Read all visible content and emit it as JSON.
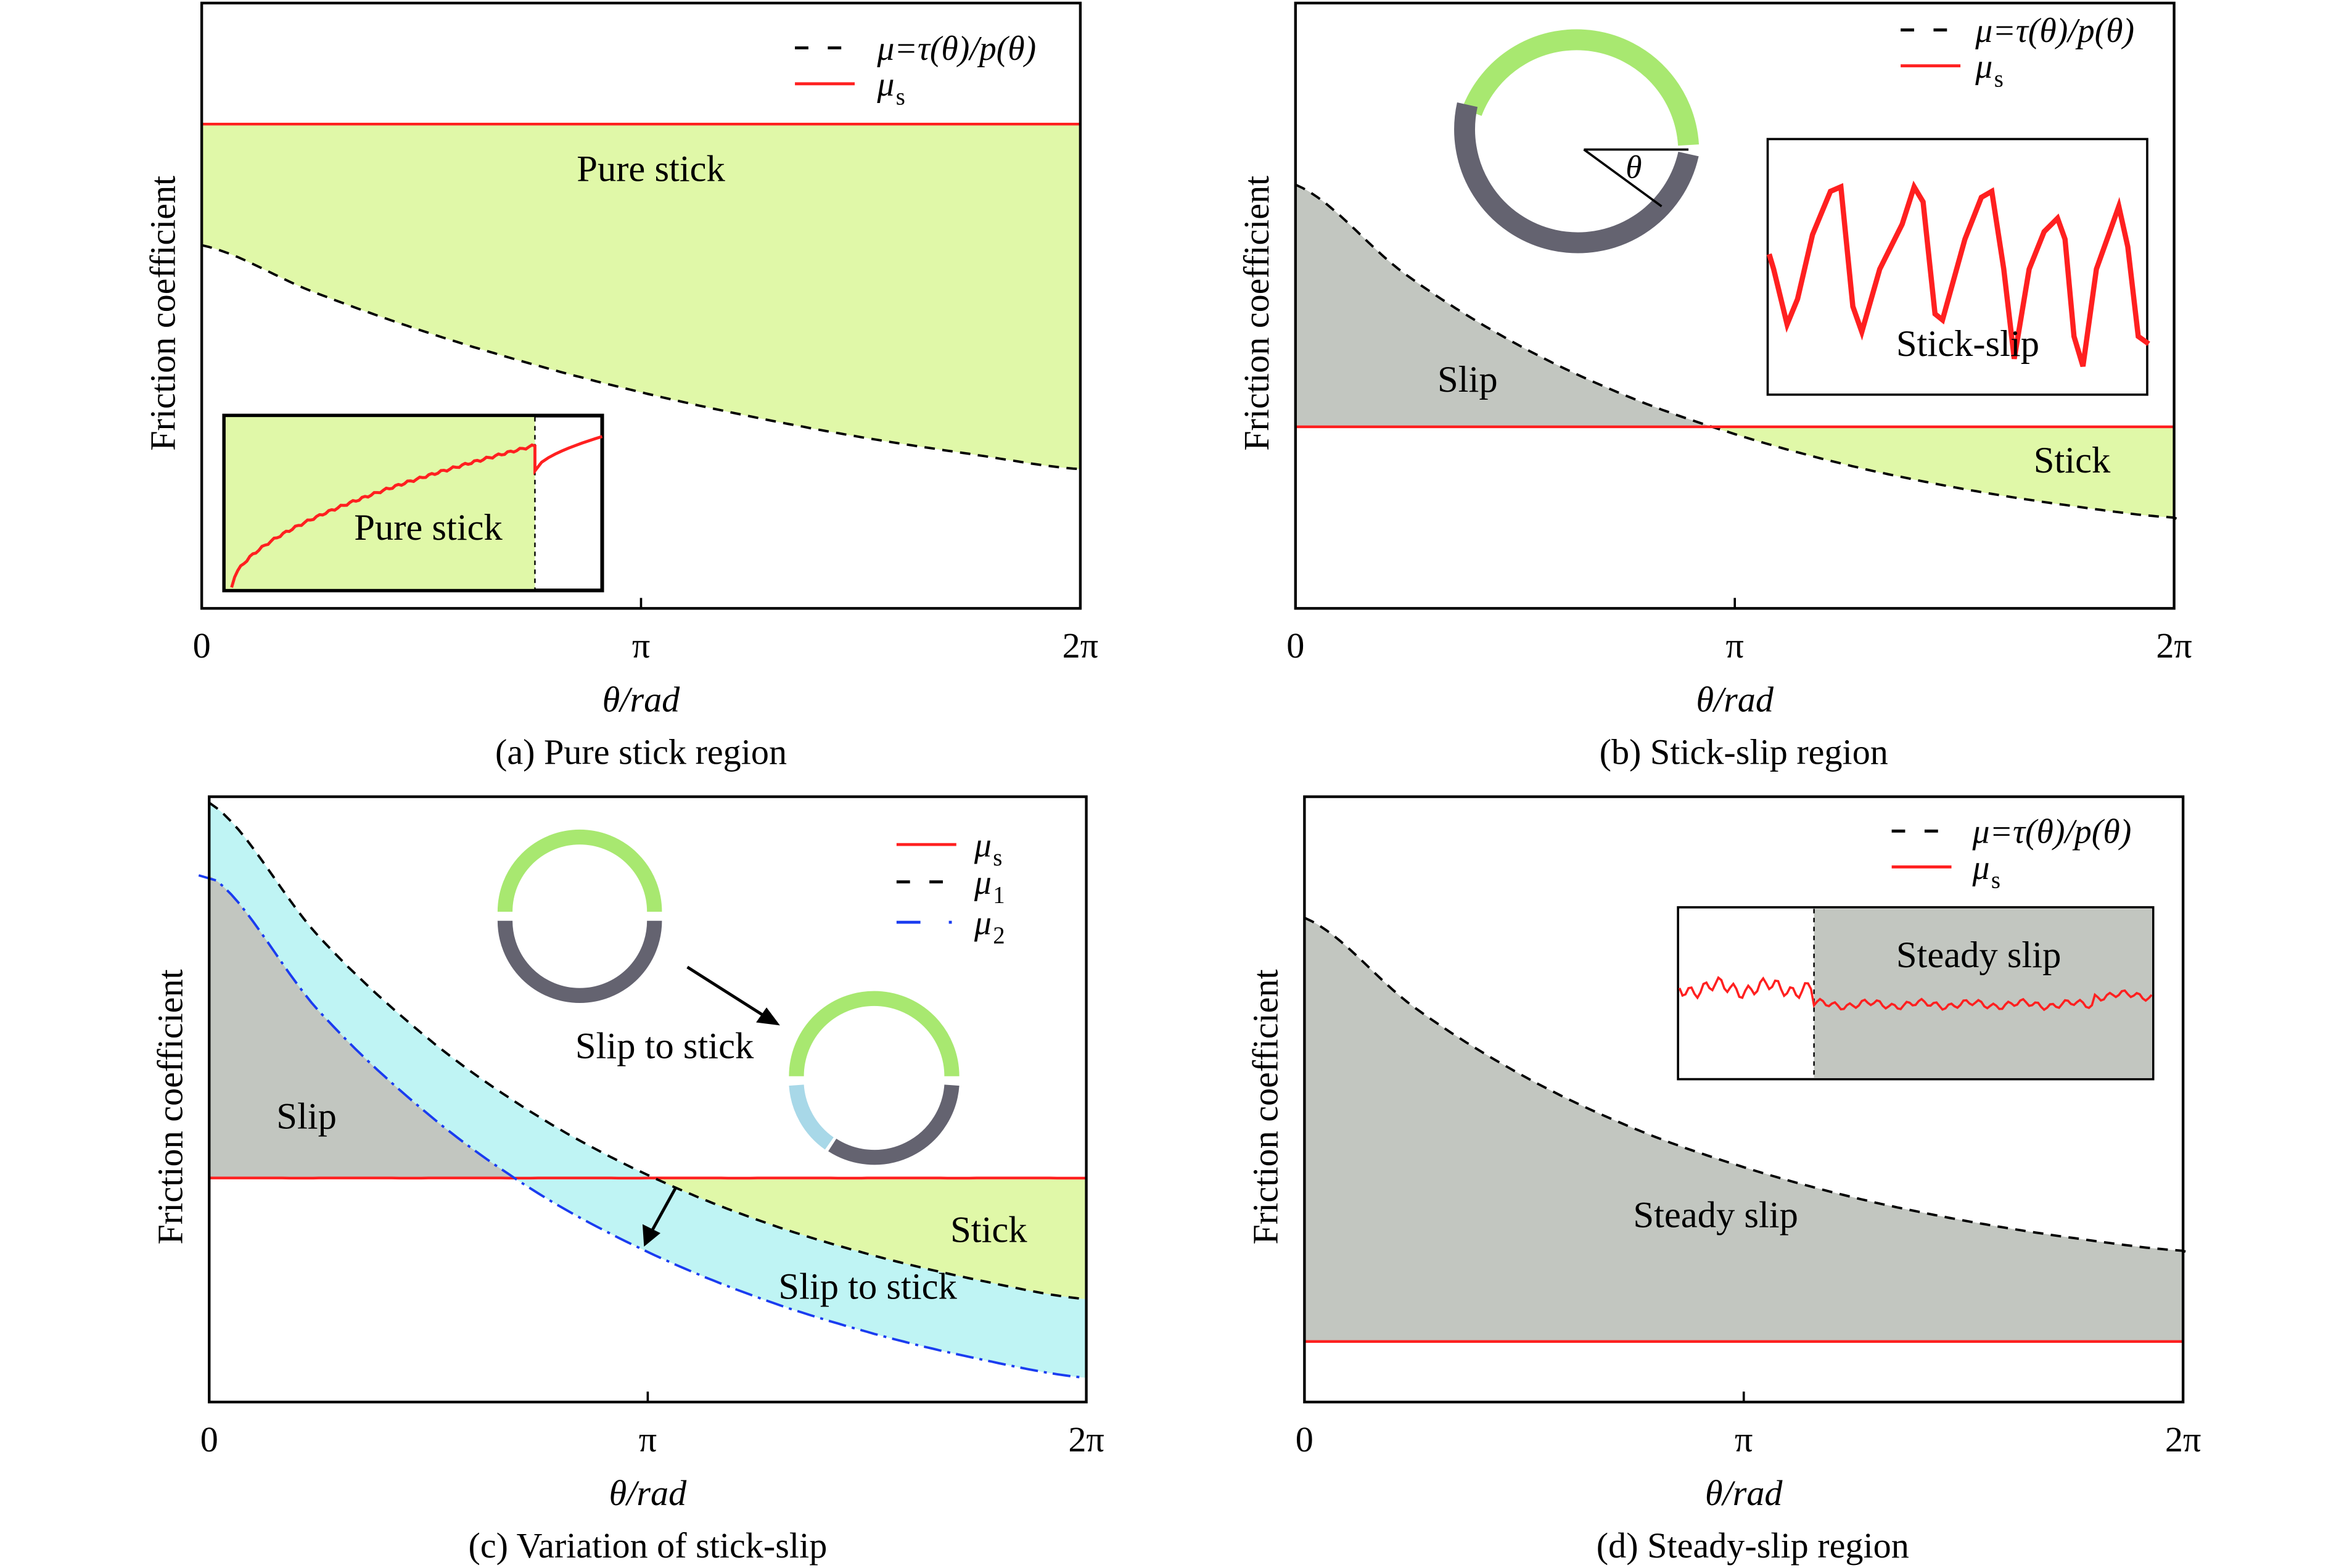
{
  "colors": {
    "mu_s": "#ff2020",
    "mu_curve": "#000000",
    "mu_2": "#1a3cf0",
    "stick_fill": "#e0f8a8",
    "slip_fill": "#c2c6c0",
    "slip_to_stick_fill": "#bff4f4",
    "ring_green": "#a8e870",
    "ring_grey": "#646370",
    "ring_blue": "#a8d8e8"
  },
  "chart_data": [
    {
      "type": "line",
      "id": "a",
      "caption": "(a) Pure stick region",
      "ylabel": "Friction coefficient",
      "xlabel": "θ/rad",
      "xticks": [
        "0",
        "π",
        "2π"
      ],
      "xlim": [
        "0",
        "2π"
      ],
      "x": [
        0,
        0.785,
        1.571,
        2.356,
        3.142,
        3.927,
        4.712,
        5.498,
        6.283
      ],
      "series": [
        {
          "name": "μ=τ(θ)/p(θ)",
          "style": "dashed",
          "values": [
            0.6,
            0.524,
            0.459,
            0.404,
            0.357,
            0.317,
            0.283,
            0.255,
            0.23
          ]
        },
        {
          "name": "μ",
          "sub": "s",
          "style": "solid",
          "values": [
            0.8,
            0.8,
            0.8,
            0.8,
            0.8,
            0.8,
            0.8,
            0.8,
            0.8
          ]
        }
      ],
      "regions": [
        "Pure stick"
      ],
      "inset": {
        "label": "Pure stick"
      }
    },
    {
      "type": "line",
      "id": "b",
      "caption": "(b) Stick-slip region",
      "ylabel": "Friction coefficient",
      "xlabel": "θ/rad",
      "xticks": [
        "0",
        "π",
        "2π"
      ],
      "xlim": [
        "0",
        "2π"
      ],
      "x": [
        0,
        0.785,
        1.571,
        2.356,
        3.142,
        3.927,
        4.712,
        5.498,
        6.283
      ],
      "series": [
        {
          "name": "μ=τ(θ)/p(θ)",
          "style": "dashed",
          "values": [
            0.7,
            0.552,
            0.438,
            0.352,
            0.288,
            0.238,
            0.2,
            0.171,
            0.15
          ]
        },
        {
          "name": "μ",
          "sub": "s",
          "style": "solid",
          "values": [
            0.3,
            0.3,
            0.3,
            0.3,
            0.3,
            0.3,
            0.3,
            0.3,
            0.3
          ]
        }
      ],
      "regions": [
        "Slip",
        "Stick"
      ],
      "ring_label": "θ",
      "inset": {
        "label": "Stick-slip"
      }
    },
    {
      "type": "line",
      "id": "c",
      "caption": "(c) Variation of stick-slip",
      "ylabel": "Friction coefficient",
      "xlabel": "θ/rad",
      "xticks": [
        "0",
        "π",
        "2π"
      ],
      "xlim": [
        "0",
        "2π"
      ],
      "x": [
        0,
        0.785,
        1.571,
        2.356,
        3.142,
        3.927,
        4.712,
        5.498,
        6.283
      ],
      "series": [
        {
          "name": "μ",
          "sub": "s",
          "style": "solid",
          "values": [
            0.37,
            0.37,
            0.37,
            0.37,
            0.37,
            0.37,
            0.37,
            0.37,
            0.37
          ]
        },
        {
          "name": "μ",
          "sub": "1",
          "style": "dashed",
          "values": [
            0.99,
            0.769,
            0.6,
            0.472,
            0.375,
            0.301,
            0.245,
            0.202,
            0.17
          ]
        },
        {
          "name": "μ",
          "sub": "2",
          "style": "dashdot",
          "values": [
            0.87,
            0.646,
            0.475,
            0.345,
            0.248,
            0.173,
            0.116,
            0.072,
            0.04
          ]
        }
      ],
      "regions": [
        "Slip",
        "Stick",
        "Slip to stick"
      ],
      "annotation": "Slip to stick"
    },
    {
      "type": "line",
      "id": "d",
      "caption": "(d) Steady-slip region",
      "ylabel": "Friction coefficient",
      "xlabel": "θ/rad",
      "xticks": [
        "0",
        "π",
        "2π"
      ],
      "xlim": [
        "0",
        "2π"
      ],
      "x": [
        0,
        0.785,
        1.571,
        2.356,
        3.142,
        3.927,
        4.712,
        5.498,
        6.283
      ],
      "series": [
        {
          "name": "μ=τ(θ)/p(θ)",
          "style": "dashed",
          "values": [
            0.8,
            0.652,
            0.538,
            0.452,
            0.388,
            0.338,
            0.3,
            0.271,
            0.25
          ]
        },
        {
          "name": "μ",
          "sub": "s",
          "style": "solid",
          "values": [
            0.1,
            0.1,
            0.1,
            0.1,
            0.1,
            0.1,
            0.1,
            0.1,
            0.1
          ]
        }
      ],
      "regions": [
        "Steady slip"
      ],
      "inset": {
        "label": "Steady slip"
      }
    }
  ]
}
